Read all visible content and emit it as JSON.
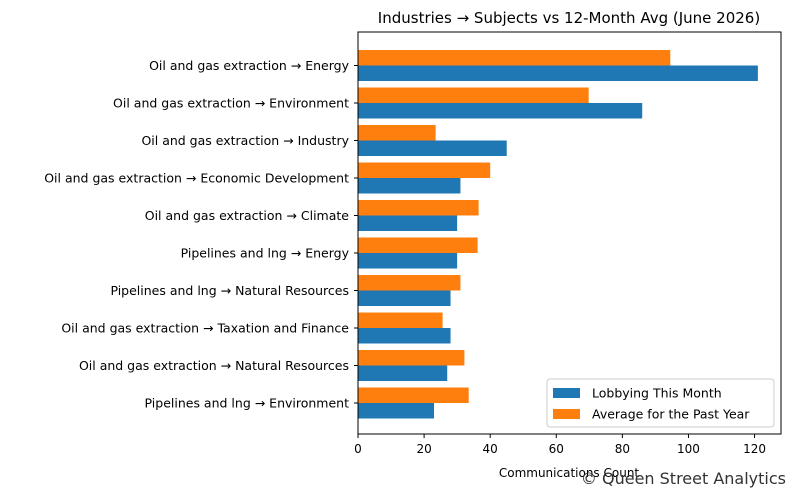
{
  "chart_data": {
    "type": "bar",
    "orientation": "horizontal",
    "title": "Industries → Subjects vs 12-Month Avg (June 2026)",
    "xlabel": "Communications Count",
    "ylabel": "",
    "xlim": [
      0,
      128
    ],
    "xticks": [
      0,
      20,
      40,
      60,
      80,
      100,
      120
    ],
    "grid": false,
    "legend_position": "lower-right",
    "categories": [
      "Oil and gas extraction → Energy",
      "Oil and gas extraction → Environment",
      "Oil and gas extraction → Industry",
      "Oil and gas extraction → Economic Development",
      "Oil and gas extraction → Climate",
      "Pipelines and lng → Energy",
      "Pipelines and lng → Natural Resources",
      "Oil and gas extraction → Taxation and Finance",
      "Oil and gas extraction → Natural Resources",
      "Pipelines and lng → Environment"
    ],
    "series": [
      {
        "name": "Lobbying This Month",
        "color": "#1f77b4",
        "values": [
          121,
          86,
          45,
          31,
          30,
          30,
          28,
          28,
          27,
          23
        ]
      },
      {
        "name": "Average for the Past Year",
        "color": "#ff7f0e",
        "values": [
          94.5,
          69.8,
          23.5,
          40.0,
          36.5,
          36.2,
          31.0,
          25.6,
          32.2,
          33.5
        ]
      }
    ]
  },
  "watermark": "© Queen Street Analytics"
}
